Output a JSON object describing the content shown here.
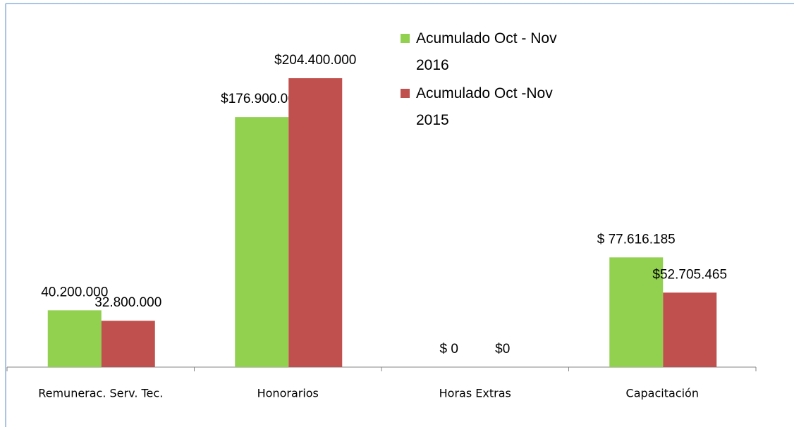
{
  "chart_data": {
    "type": "bar",
    "categories": [
      "Remunerac. Serv. Tec.",
      "Honorarios",
      "Horas Extras",
      "Capacitación"
    ],
    "series": [
      {
        "name": "Acumulado Oct - Nov 2016",
        "color": "#92d050",
        "values": [
          40200000,
          176900000,
          0,
          77616185
        ],
        "value_labels": [
          "40.200.000",
          "$176.900.000",
          "$ 0",
          "$ 77.616.185"
        ]
      },
      {
        "name": "Acumulado Oct -Nov 2015",
        "color": "#c0504d",
        "values": [
          32800000,
          204400000,
          0,
          52705465
        ],
        "value_labels": [
          "32.800.000",
          "$204.400.000",
          "$0",
          "$52.705.465"
        ]
      }
    ],
    "ylim": [
      0,
      250000000
    ]
  }
}
